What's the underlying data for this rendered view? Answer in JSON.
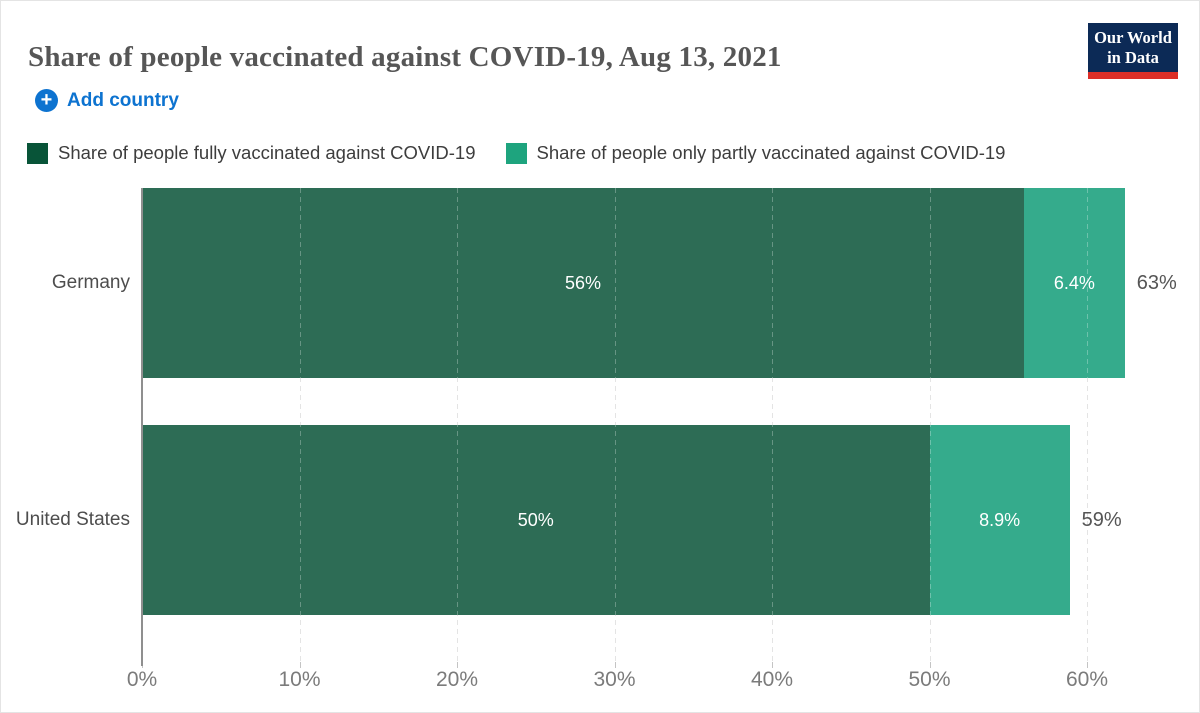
{
  "header": {
    "title": "Share of people vaccinated against COVID-19, Aug 13, 2021"
  },
  "logo": {
    "line1": "Our World",
    "line2": "in Data",
    "bg_color": "#0C2A56",
    "accent_color": "#DC2F28",
    "text_color": "#FFFFFF"
  },
  "controls": {
    "add_country_label": "Add country",
    "add_icon_glyph": "+",
    "accent_color": "#0D73D0"
  },
  "legend": {
    "items": [
      {
        "label": "Share of people fully vaccinated against COVID-19",
        "color": "#085438"
      },
      {
        "label": "Share of people only partly vaccinated against COVID-19",
        "color": "#1EA47E"
      }
    ]
  },
  "chart_data": {
    "type": "bar",
    "orientation": "horizontal",
    "stacked": true,
    "categories": [
      "Germany",
      "United States"
    ],
    "series": [
      {
        "name": "Share of people fully vaccinated against COVID-19",
        "values": [
          56,
          50
        ],
        "labels": [
          "56%",
          "50%"
        ],
        "color": "#2D6C55"
      },
      {
        "name": "Share of people only partly vaccinated against COVID-19",
        "values": [
          6.4,
          8.9
        ],
        "labels": [
          "6.4%",
          "8.9%"
        ],
        "color": "#35AB8C"
      }
    ],
    "totals": [
      "63%",
      "59%"
    ],
    "x_ticks": [
      "0%",
      "10%",
      "20%",
      "30%",
      "40%",
      "50%",
      "60%"
    ],
    "x_tick_values": [
      0,
      10,
      20,
      30,
      40,
      50,
      60
    ],
    "xlim": [
      0,
      62.4
    ],
    "xlabel": "",
    "ylabel": "",
    "grid": "dashed-vertical",
    "value_label_color": "#FFFFFF",
    "total_label_color": "#555555",
    "axis_label_color": "#7B7B7B"
  }
}
